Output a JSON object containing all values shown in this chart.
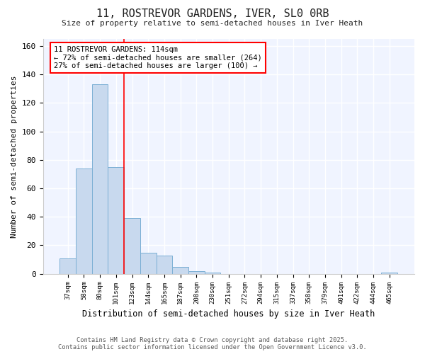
{
  "title1": "11, ROSTREVOR GARDENS, IVER, SL0 0RB",
  "title2": "Size of property relative to semi-detached houses in Iver Heath",
  "xlabel": "Distribution of semi-detached houses by size in Iver Heath",
  "ylabel": "Number of semi-detached properties",
  "categories": [
    "37sqm",
    "58sqm",
    "80sqm",
    "101sqm",
    "123sqm",
    "144sqm",
    "165sqm",
    "187sqm",
    "208sqm",
    "230sqm",
    "251sqm",
    "272sqm",
    "294sqm",
    "315sqm",
    "337sqm",
    "358sqm",
    "379sqm",
    "401sqm",
    "422sqm",
    "444sqm",
    "465sqm"
  ],
  "values": [
    11,
    74,
    133,
    75,
    39,
    15,
    13,
    5,
    2,
    1,
    0,
    0,
    0,
    0,
    0,
    0,
    0,
    0,
    0,
    0,
    1
  ],
  "bar_color": "#c8d9ee",
  "bar_edge_color": "#7bafd4",
  "annotation_line1": "11 ROSTREVOR GARDENS: 114sqm",
  "annotation_line2": "← 72% of semi-detached houses are smaller (264)",
  "annotation_line3": "27% of semi-detached houses are larger (100) →",
  "footer1": "Contains HM Land Registry data © Crown copyright and database right 2025.",
  "footer2": "Contains public sector information licensed under the Open Government Licence v3.0.",
  "fig_bg_color": "#ffffff",
  "plot_bg_color": "#f0f4ff",
  "grid_color": "#ffffff",
  "ylim": [
    0,
    165
  ],
  "yticks": [
    0,
    20,
    40,
    60,
    80,
    100,
    120,
    140,
    160
  ],
  "red_line_x": 3.5
}
